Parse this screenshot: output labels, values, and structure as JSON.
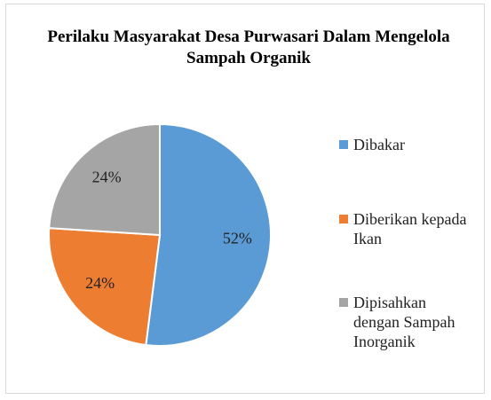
{
  "chart_data": {
    "type": "pie",
    "title": "Perilaku Masyarakat Desa Purwasari Dalam Mengelola Sampah Organik",
    "categories": [
      "Dibakar",
      "Diberikan kepada Ikan",
      "Dipisahkan dengan Sampah Inorganik"
    ],
    "values": [
      52,
      24,
      24
    ],
    "value_labels": [
      "52%",
      "24%",
      "24%"
    ],
    "colors": [
      "#5b9bd5",
      "#ed7d31",
      "#a5a5a5"
    ],
    "legend": "right"
  }
}
